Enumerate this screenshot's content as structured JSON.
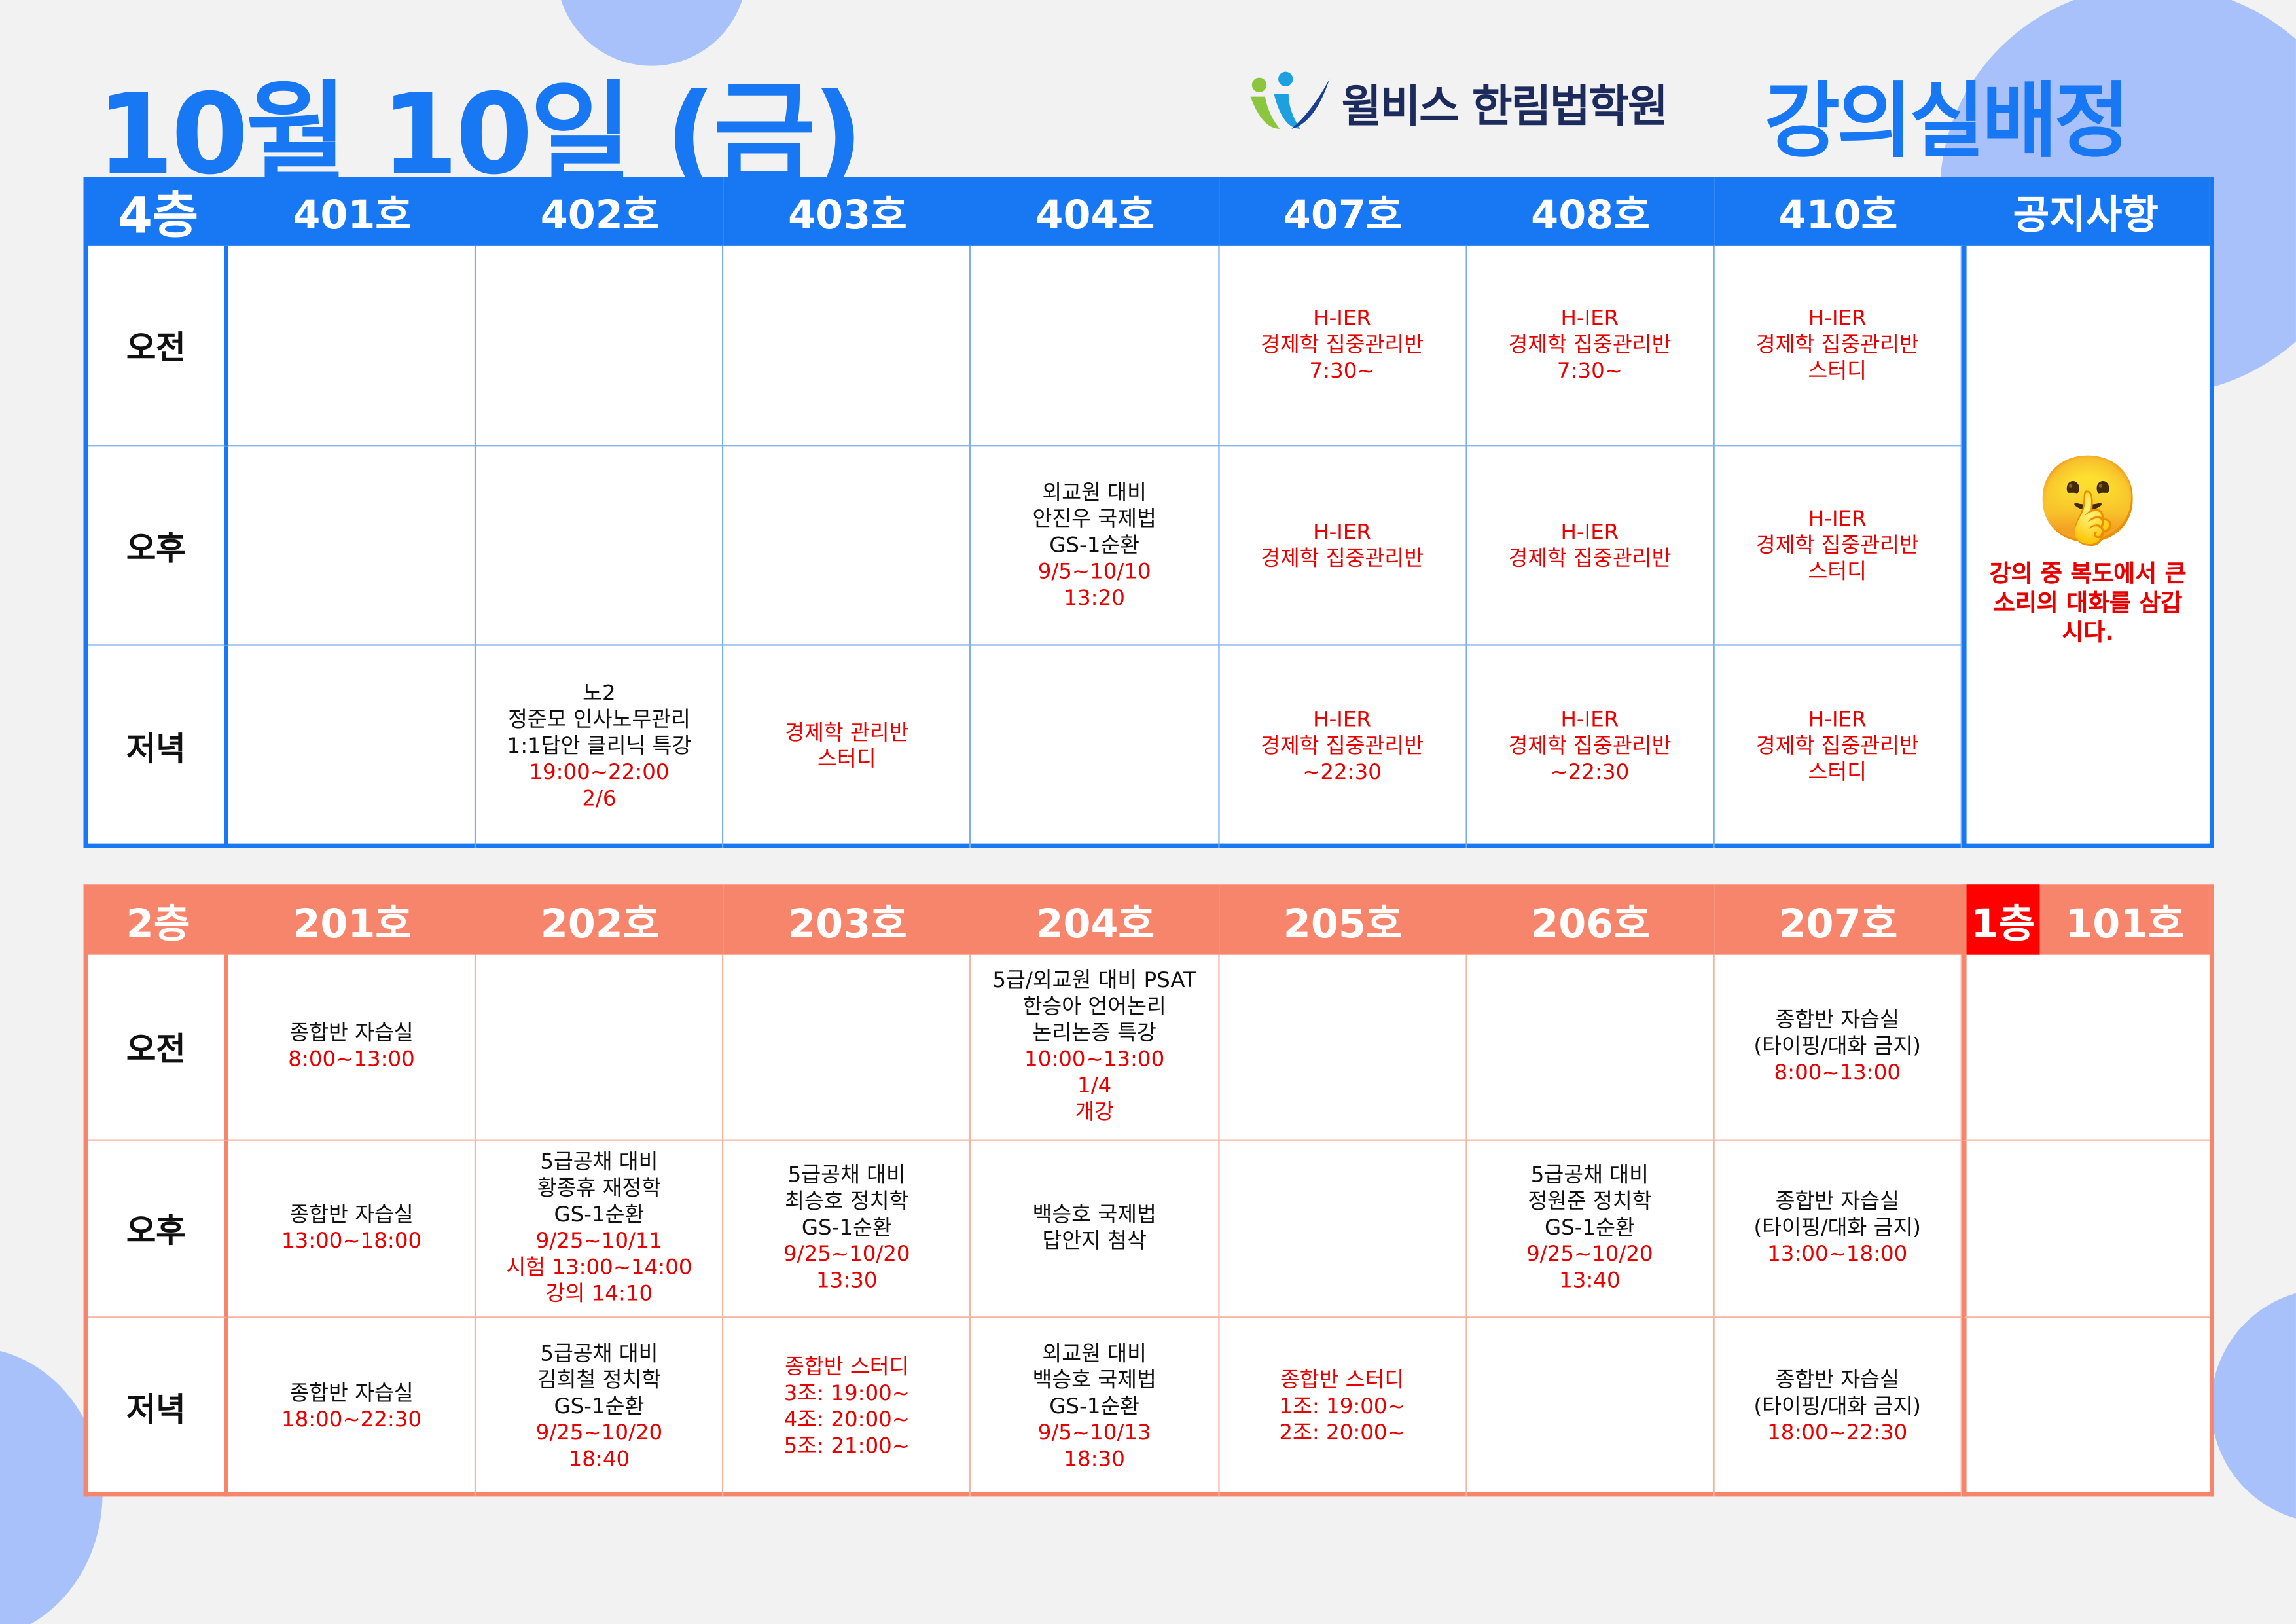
{
  "header": {
    "date_title": "10월 10일 (금)",
    "logo_text": "윌비스 한림법학원",
    "heading": "강의실배정"
  },
  "colors": {
    "blue": "#1877f2",
    "salmon": "#f7856b",
    "red_text": "#e60000",
    "floor1_badge": "#ff0000"
  },
  "top": {
    "floor": "4층",
    "rooms": [
      "401호",
      "402호",
      "403호",
      "404호",
      "407호",
      "408호",
      "410호"
    ],
    "notice_header": "공지사항",
    "periods": [
      "오전",
      "오후",
      "저녁"
    ],
    "grid": [
      [
        [],
        [],
        [],
        [],
        [
          {
            "t": "H-IER",
            "red": true
          },
          {
            "t": "경제학 집중관리반",
            "red": true
          },
          {
            "t": "7:30~",
            "red": true
          }
        ],
        [
          {
            "t": "H-IER",
            "red": true
          },
          {
            "t": "경제학 집중관리반",
            "red": true
          },
          {
            "t": "7:30~",
            "red": true
          }
        ],
        [
          {
            "t": "H-IER",
            "red": true
          },
          {
            "t": "경제학 집중관리반",
            "red": true
          },
          {
            "t": "스터디",
            "red": true
          }
        ]
      ],
      [
        [],
        [],
        [],
        [
          {
            "t": "외교원 대비"
          },
          {
            "t": "안진우 국제법"
          },
          {
            "t": "GS-1순환"
          },
          {
            "t": "9/5~10/10",
            "red": true
          },
          {
            "t": "13:20",
            "red": true
          }
        ],
        [
          {
            "t": "H-IER",
            "red": true
          },
          {
            "t": "경제학 집중관리반",
            "red": true
          }
        ],
        [
          {
            "t": "H-IER",
            "red": true
          },
          {
            "t": "경제학 집중관리반",
            "red": true
          }
        ],
        [
          {
            "t": "H-IER",
            "red": true
          },
          {
            "t": "경제학 집중관리반",
            "red": true
          },
          {
            "t": "스터디",
            "red": true
          }
        ]
      ],
      [
        [],
        [
          {
            "t": "노2"
          },
          {
            "t": "정준모 인사노무관리"
          },
          {
            "t": "1:1답안 클리닉 특강"
          },
          {
            "t": "19:00~22:00",
            "red": true
          },
          {
            "t": "2/6",
            "red": true
          }
        ],
        [
          {
            "t": "경제학 관리반",
            "red": true
          },
          {
            "t": "스터디",
            "red": true
          }
        ],
        [],
        [
          {
            "t": "H-IER",
            "red": true
          },
          {
            "t": "경제학 집중관리반",
            "red": true
          },
          {
            "t": "~22:30",
            "red": true
          }
        ],
        [
          {
            "t": "H-IER",
            "red": true
          },
          {
            "t": "경제학 집중관리반",
            "red": true
          },
          {
            "t": "~22:30",
            "red": true
          }
        ],
        [
          {
            "t": "H-IER",
            "red": true
          },
          {
            "t": "경제학 집중관리반",
            "red": true
          },
          {
            "t": "스터디",
            "red": true
          }
        ]
      ]
    ],
    "notice": {
      "icon": "shushing-face-emoji",
      "emoji": "🤫",
      "text": "강의 중 복도에서 큰 소리의 대화를 삼갑시다."
    }
  },
  "bottom": {
    "floor": "2층",
    "rooms": [
      "201호",
      "202호",
      "203호",
      "204호",
      "205호",
      "206호",
      "207호"
    ],
    "floor1": "1층",
    "room101": "101호",
    "periods": [
      "오전",
      "오후",
      "저녁"
    ],
    "grid": [
      [
        [
          {
            "t": "종합반 자습실"
          },
          {
            "t": "8:00~13:00",
            "red": true
          }
        ],
        [],
        [],
        [
          {
            "t": "5급/외교원 대비 PSAT"
          },
          {
            "t": "한승아 언어논리"
          },
          {
            "t": "논리논증 특강"
          },
          {
            "t": "10:00~13:00",
            "red": true
          },
          {
            "t": "1/4",
            "red": true
          },
          {
            "t": "개강",
            "red": true
          }
        ],
        [],
        [],
        [
          {
            "t": "종합반 자습실"
          },
          {
            "t": "(타이핑/대화 금지)"
          },
          {
            "t": "8:00~13:00",
            "red": true
          }
        ]
      ],
      [
        [
          {
            "t": "종합반 자습실"
          },
          {
            "t": "13:00~18:00",
            "red": true
          }
        ],
        [
          {
            "t": "5급공채 대비"
          },
          {
            "t": "황종휴 재정학"
          },
          {
            "t": "GS-1순환"
          },
          {
            "t": "9/25~10/11",
            "red": true
          },
          {
            "t": "시험 13:00~14:00",
            "red": true
          },
          {
            "t": "강의 14:10",
            "red": true
          }
        ],
        [
          {
            "t": "5급공채 대비"
          },
          {
            "t": "최승호 정치학"
          },
          {
            "t": "GS-1순환"
          },
          {
            "t": "9/25~10/20",
            "red": true
          },
          {
            "t": "13:30",
            "red": true
          }
        ],
        [
          {
            "t": "백승호 국제법"
          },
          {
            "t": "답안지 첨삭"
          }
        ],
        [],
        [
          {
            "t": "5급공채 대비"
          },
          {
            "t": "정원준 정치학"
          },
          {
            "t": "GS-1순환"
          },
          {
            "t": "9/25~10/20",
            "red": true
          },
          {
            "t": "13:40",
            "red": true
          }
        ],
        [
          {
            "t": "종합반 자습실"
          },
          {
            "t": "(타이핑/대화 금지)"
          },
          {
            "t": "13:00~18:00",
            "red": true
          }
        ]
      ],
      [
        [
          {
            "t": "종합반 자습실"
          },
          {
            "t": "18:00~22:30",
            "red": true
          }
        ],
        [
          {
            "t": "5급공채 대비"
          },
          {
            "t": "김희철 정치학"
          },
          {
            "t": "GS-1순환"
          },
          {
            "t": "9/25~10/20",
            "red": true
          },
          {
            "t": "18:40",
            "red": true
          }
        ],
        [
          {
            "t": "종합반 스터디",
            "red": true
          },
          {
            "t": "3조: 19:00~",
            "red": true
          },
          {
            "t": "4조: 20:00~",
            "red": true
          },
          {
            "t": "5조: 21:00~",
            "red": true
          }
        ],
        [
          {
            "t": "외교원 대비"
          },
          {
            "t": "백승호 국제법"
          },
          {
            "t": "GS-1순환"
          },
          {
            "t": "9/5~10/13",
            "red": true
          },
          {
            "t": "18:30",
            "red": true
          }
        ],
        [
          {
            "t": "종합반 스터디",
            "red": true
          },
          {
            "t": "1조: 19:00~",
            "red": true
          },
          {
            "t": "2조: 20:00~",
            "red": true
          }
        ],
        [],
        [
          {
            "t": "종합반 자습실"
          },
          {
            "t": "(타이핑/대화 금지)"
          },
          {
            "t": "18:00~22:30",
            "red": true
          }
        ]
      ]
    ]
  }
}
